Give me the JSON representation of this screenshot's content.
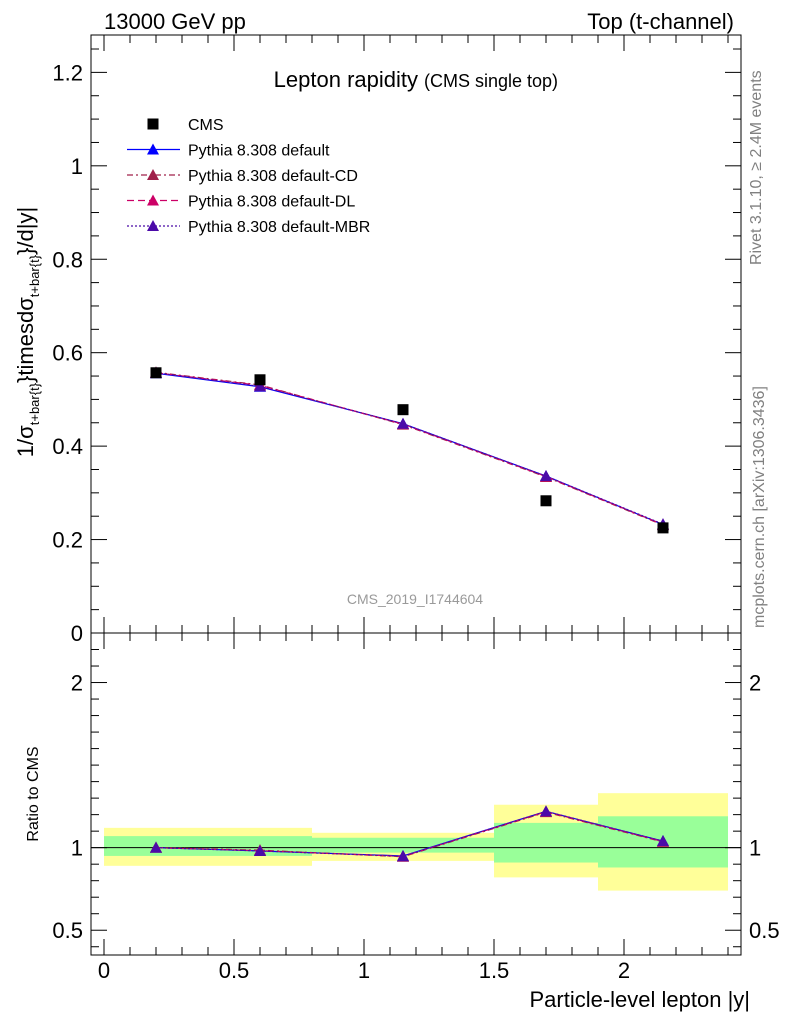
{
  "header": {
    "energy": "13000 GeV pp",
    "process": "Top (t-channel)"
  },
  "side_labels": {
    "rivet": "Rivet 3.1.10, ≥ 2.4M events",
    "mcplots": "mcplots.cern.ch [arXiv:1306.3436]"
  },
  "chart_data": [
    {
      "type": "line",
      "panel": "main",
      "title": "Lepton rapidity",
      "subtitle": "(CMS single top)",
      "ylabel": "1/σ_{t+bar{t}}timesdσ_{t+bar{t}}/d|y|",
      "ylabel_parts": [
        "1/σ",
        "t+bar{t}",
        "}timesdσ",
        "t+bar{t}",
        "}/d|y|"
      ],
      "ylim": [
        0,
        1.28
      ],
      "yticks": [
        {
          "v": 0,
          "label": "0"
        },
        {
          "v": 0.2,
          "label": "0.2"
        },
        {
          "v": 0.4,
          "label": "0.4"
        },
        {
          "v": 0.6,
          "label": "0.6"
        },
        {
          "v": 0.8,
          "label": "0.8"
        },
        {
          "v": 1.0,
          "label": "1"
        },
        {
          "v": 1.2,
          "label": "1.2"
        }
      ],
      "watermark": "CMS_2019_I1744604",
      "legend": [
        "CMS",
        "Pythia 8.308 default",
        "Pythia 8.308 default-CD",
        "Pythia 8.308 default-DL",
        "Pythia 8.308 default-MBR"
      ],
      "series": [
        {
          "name": "CMS",
          "color": "#000000",
          "x": [
            0.2,
            0.6,
            1.15,
            1.7,
            2.15
          ],
          "y": [
            0.557,
            0.542,
            0.478,
            0.283,
            0.225
          ]
        },
        {
          "name": "Pythia 8.308 default",
          "color": "#0000ff",
          "x": [
            0.2,
            0.6,
            1.15,
            1.7,
            2.15
          ],
          "y": [
            0.556,
            0.527,
            0.448,
            0.336,
            0.232
          ]
        },
        {
          "name": "Pythia 8.308 default-CD",
          "color": "#a0204a",
          "x": [
            0.2,
            0.6,
            1.15,
            1.7,
            2.15
          ],
          "y": [
            0.558,
            0.531,
            0.446,
            0.334,
            0.231
          ]
        },
        {
          "name": "Pythia 8.308 default-DL",
          "color": "#cc0066",
          "x": [
            0.2,
            0.6,
            1.15,
            1.7,
            2.15
          ],
          "y": [
            0.557,
            0.53,
            0.447,
            0.335,
            0.232
          ]
        },
        {
          "name": "Pythia 8.308 default-MBR",
          "color": "#4b0aa8",
          "x": [
            0.2,
            0.6,
            1.15,
            1.7,
            2.15
          ],
          "y": [
            0.557,
            0.528,
            0.448,
            0.336,
            0.233
          ]
        }
      ]
    },
    {
      "type": "line",
      "panel": "ratio",
      "ylabel": "Ratio to CMS",
      "xlabel": "Particle-level lepton |y|",
      "xlim": [
        -0.05,
        2.45
      ],
      "xticks": [
        {
          "v": 0,
          "label": "0"
        },
        {
          "v": 0.5,
          "label": "0.5"
        },
        {
          "v": 1,
          "label": "1"
        },
        {
          "v": 1.5,
          "label": "1.5"
        },
        {
          "v": 2,
          "label": "2"
        }
      ],
      "ylim": [
        0.35,
        2.3
      ],
      "yticks": [
        {
          "v": 0.5,
          "label": "0.5"
        },
        {
          "v": 1,
          "label": "1"
        },
        {
          "v": 2,
          "label": "2"
        }
      ],
      "bands": [
        {
          "x0": 0.0,
          "x1": 0.8,
          "inner": [
            0.95,
            1.07
          ],
          "outer": [
            0.89,
            1.12
          ]
        },
        {
          "x0": 0.8,
          "x1": 1.5,
          "inner": [
            0.97,
            1.06
          ],
          "outer": [
            0.92,
            1.09
          ]
        },
        {
          "x0": 1.5,
          "x1": 1.9,
          "inner": [
            0.91,
            1.15
          ],
          "outer": [
            0.82,
            1.26
          ]
        },
        {
          "x0": 1.9,
          "x1": 2.4,
          "inner": [
            0.88,
            1.19
          ],
          "outer": [
            0.74,
            1.33
          ]
        }
      ],
      "band_colors": {
        "inner": "#99ff99",
        "outer": "#ffff99"
      },
      "series": [
        {
          "name": "Pythia 8.308 default",
          "color": "#0000ff",
          "x": [
            0.2,
            0.6,
            1.15,
            1.7,
            2.15
          ],
          "y": [
            1.0,
            0.98,
            0.95,
            1.22,
            1.04
          ]
        },
        {
          "name": "Pythia 8.308 default-CD",
          "color": "#a0204a",
          "x": [
            0.2,
            0.6,
            1.15,
            1.7,
            2.15
          ],
          "y": [
            1.0,
            0.985,
            0.945,
            1.215,
            1.035
          ]
        },
        {
          "name": "Pythia 8.308 default-DL",
          "color": "#cc0066",
          "x": [
            0.2,
            0.6,
            1.15,
            1.7,
            2.15
          ],
          "y": [
            1.0,
            0.982,
            0.947,
            1.218,
            1.037
          ]
        },
        {
          "name": "Pythia 8.308 default-MBR",
          "color": "#4b0aa8",
          "x": [
            0.2,
            0.6,
            1.15,
            1.7,
            2.15
          ],
          "y": [
            1.0,
            0.98,
            0.948,
            1.22,
            1.04
          ]
        }
      ]
    }
  ]
}
